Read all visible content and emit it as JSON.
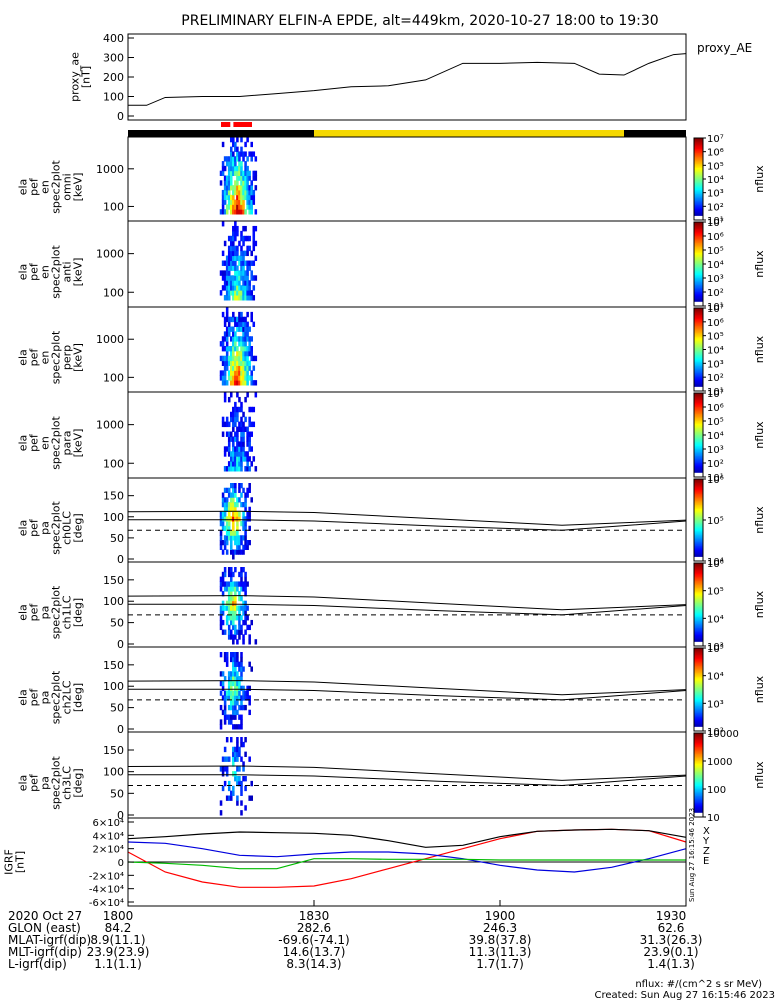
{
  "title": "PRELIMINARY ELFIN-A EPDE, alt=449km, 2020-10-27 18:00 to 19:30",
  "colors": {
    "frame": "#000000",
    "bar_black": "#000000",
    "bar_yellow": "#f5d800",
    "bar_red": "#ff0000",
    "bx": "#ff0000",
    "by": "#0000dd",
    "bz": "#00bb00",
    "bt": "#000000"
  },
  "ae_panel": {
    "ylabel_lines": [
      "proxy_ae",
      "[nT]"
    ],
    "legend": "proxy_AE",
    "yticks": [
      "0",
      "100",
      "200",
      "300",
      "400"
    ]
  },
  "status_bar": {
    "segments": [
      {
        "start_min": 0,
        "end_min": 30,
        "color": "black"
      },
      {
        "start_min": 30,
        "end_min": 80,
        "color": "yellow"
      },
      {
        "start_min": 80,
        "end_min": 90,
        "color": "black"
      }
    ],
    "red_marks": [
      {
        "start_min": 15,
        "end_min": 16.5
      },
      {
        "start_min": 17,
        "end_min": 20
      }
    ]
  },
  "spec_panels": [
    {
      "ylabel_lines": [
        "ela",
        "pef",
        "en",
        "spec2plot",
        "omni",
        "[keV]"
      ],
      "yticks": [
        "100",
        "1000"
      ],
      "cb_ticks": [
        "10¹",
        "10²",
        "10³",
        "10⁴",
        "10⁵",
        "10⁶",
        "10⁷"
      ],
      "cb_label": "nflux"
    },
    {
      "ylabel_lines": [
        "ela",
        "pef",
        "en",
        "spec2plot",
        "anti",
        "[keV]"
      ],
      "yticks": [
        "100",
        "1000"
      ],
      "cb_ticks": [
        "10¹",
        "10²",
        "10³",
        "10⁴",
        "10⁵",
        "10⁶",
        "10⁷"
      ],
      "cb_label": "nflux"
    },
    {
      "ylabel_lines": [
        "ela",
        "pef",
        "en",
        "spec2plot",
        "perp",
        "[keV]"
      ],
      "yticks": [
        "100",
        "1000"
      ],
      "cb_ticks": [
        "10¹",
        "10²",
        "10³",
        "10⁴",
        "10⁵",
        "10⁶",
        "10⁷"
      ],
      "cb_label": "nflux"
    },
    {
      "ylabel_lines": [
        "ela",
        "pef",
        "en",
        "spec2plot",
        "para",
        "[keV]"
      ],
      "yticks": [
        "100",
        "1000"
      ],
      "cb_ticks": [
        "10¹",
        "10²",
        "10³",
        "10⁴",
        "10⁵",
        "10⁶",
        "10⁷"
      ],
      "cb_label": "nflux"
    }
  ],
  "pa_panels": [
    {
      "ylabel_lines": [
        "ela",
        "pef",
        "pa",
        "spec2plot",
        "ch0LC",
        "[deg]"
      ],
      "yticks": [
        "0",
        "50",
        "100",
        "150"
      ],
      "cb_ticks": [
        "10⁴",
        "10⁵",
        "10⁶"
      ],
      "cb_label": "nflux"
    },
    {
      "ylabel_lines": [
        "ela",
        "pef",
        "pa",
        "spec2plot",
        "ch1LC",
        "[deg]"
      ],
      "yticks": [
        "0",
        "50",
        "100",
        "150"
      ],
      "cb_ticks": [
        "10³",
        "10⁴",
        "10⁵",
        "10⁶"
      ],
      "cb_label": "nflux"
    },
    {
      "ylabel_lines": [
        "ela",
        "pef",
        "pa",
        "spec2plot",
        "ch2LC",
        "[deg]"
      ],
      "yticks": [
        "0",
        "50",
        "100",
        "150"
      ],
      "cb_ticks": [
        "10²",
        "10³",
        "10⁴",
        "10⁵"
      ],
      "cb_label": "nflux"
    },
    {
      "ylabel_lines": [
        "ela",
        "pef",
        "pa",
        "spec2plot",
        "ch3LC",
        "[deg]"
      ],
      "yticks": [
        "0",
        "50",
        "100",
        "150"
      ],
      "cb_ticks": [
        "10",
        "100",
        "1000",
        "10000"
      ],
      "cb_label": "nflux"
    }
  ],
  "igrf_panel": {
    "ylabel_lines": [
      "IGRF",
      "[nT]"
    ],
    "yticks": [
      "-6×10⁴",
      "-4×10⁴",
      "-2×10⁴",
      "0",
      "2×10⁴",
      "4×10⁴",
      "6×10⁴"
    ],
    "legend": [
      "X",
      "Y",
      "Z",
      "E"
    ],
    "side_note": "Sun Aug 27 16:15:46 2023"
  },
  "orbit_table": {
    "row_labels": [
      "2020 Oct 27",
      "GLON (east)",
      "MLAT-igrf(dip)",
      "MLT-igrf(dip)",
      "L-igrf(dip)"
    ],
    "columns": [
      {
        "time": "1800",
        "values": [
          "84.2",
          "8.9(11.1)",
          "23.9(23.9)",
          "1.1(1.1)"
        ]
      },
      {
        "time": "1830",
        "values": [
          "282.6",
          "-69.6(-74.1)",
          "14.6(13.7)",
          "8.3(14.3)"
        ]
      },
      {
        "time": "1900",
        "values": [
          "246.3",
          "39.8(37.8)",
          "11.3(11.3)",
          "1.7(1.7)"
        ]
      },
      {
        "time": "1930",
        "values": [
          "62.6",
          "31.3(26.3)",
          "23.9(0.1)",
          "1.4(1.3)"
        ]
      }
    ]
  },
  "footer": {
    "units": "nflux: #/(cm^2 s sr MeV)",
    "created": "Created: Sun Aug 27 16:15:46 2023"
  },
  "chart_data": [
    {
      "type": "line",
      "name_ref": "proxy_AE",
      "xrange_min": [
        0,
        90
      ],
      "ylim": [
        0,
        400
      ],
      "x_min": [
        0,
        3,
        6,
        12,
        18,
        24,
        30,
        36,
        42,
        48,
        54,
        60,
        66,
        72,
        76,
        80,
        84,
        88,
        90
      ],
      "y": [
        55,
        55,
        95,
        100,
        100,
        115,
        130,
        150,
        155,
        185,
        270,
        270,
        275,
        270,
        215,
        210,
        270,
        315,
        320
      ]
    },
    {
      "type": "heatmap",
      "panel": "energy spectrograms (omni, anti, perp, para)",
      "yscale": "log",
      "ylim_keV": [
        63,
        7000
      ],
      "active_interval_min": [
        15,
        21
      ],
      "note": "Electron energy flux in 18:15–18:21, most intense below ~1000 keV."
    },
    {
      "type": "line",
      "panel": "loss cone / anti-loss cone pitch-angle lines",
      "ylim_deg": [
        0,
        180
      ],
      "x_min": [
        0,
        18,
        30,
        50,
        70,
        90
      ],
      "upper": [
        112,
        113,
        110,
        95,
        80,
        92
      ],
      "lower": [
        93,
        93,
        90,
        78,
        68,
        90
      ],
      "dashed": [
        68,
        68,
        68,
        68,
        68,
        68
      ]
    },
    {
      "type": "line",
      "panel": "IGRF field components",
      "ylim": [
        -60000,
        60000
      ],
      "x_min": [
        0,
        6,
        12,
        18,
        24,
        30,
        36,
        42,
        48,
        54,
        60,
        66,
        72,
        78,
        84,
        90
      ],
      "series": [
        {
          "name": "X",
          "values": [
            15000,
            -15000,
            -30000,
            -38000,
            -38000,
            -36000,
            -25000,
            -10000,
            5000,
            20000,
            35000,
            46000,
            48000,
            49000,
            47000,
            30000
          ]
        },
        {
          "name": "Y",
          "values": [
            30000,
            28000,
            20000,
            10000,
            8000,
            12000,
            15000,
            15000,
            12000,
            5000,
            -5000,
            -12000,
            -15000,
            -8000,
            5000,
            20000
          ]
        },
        {
          "name": "Z",
          "values": [
            0,
            -2000,
            -5000,
            -10000,
            -10000,
            5000,
            5000,
            4000,
            4000,
            4000,
            3000,
            3000,
            3000,
            3000,
            3000,
            3000
          ]
        },
        {
          "name": "E",
          "values": [
            35000,
            38000,
            42000,
            45000,
            44000,
            43000,
            40000,
            32000,
            22000,
            25000,
            38000,
            46000,
            48000,
            49000,
            47000,
            37000
          ]
        }
      ]
    }
  ]
}
